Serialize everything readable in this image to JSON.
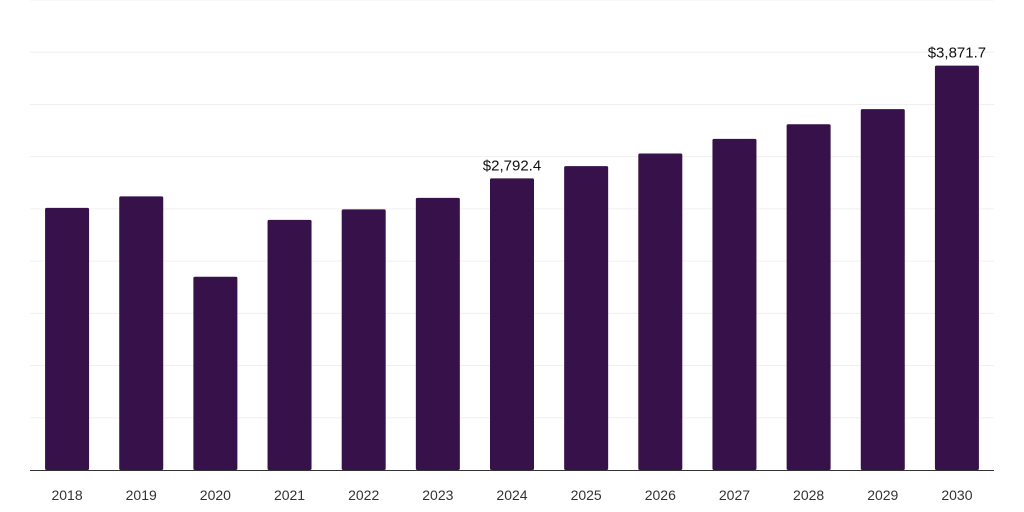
{
  "chart_data": {
    "type": "bar",
    "categories": [
      "2018",
      "2019",
      "2020",
      "2021",
      "2022",
      "2023",
      "2024",
      "2025",
      "2026",
      "2027",
      "2028",
      "2029",
      "2030"
    ],
    "values": [
      2510,
      2620,
      1850,
      2395,
      2495,
      2605,
      2792.4,
      2910,
      3030,
      3170,
      3310,
      3455,
      3871.7
    ],
    "data_labels": [
      {
        "index": 6,
        "text": "$2,792.4"
      },
      {
        "index": 12,
        "text": "$3,871.7"
      }
    ],
    "title": "",
    "xlabel": "",
    "ylabel": "",
    "ylim": [
      0,
      4500
    ],
    "grid": true,
    "bar_color": "#36114a"
  }
}
